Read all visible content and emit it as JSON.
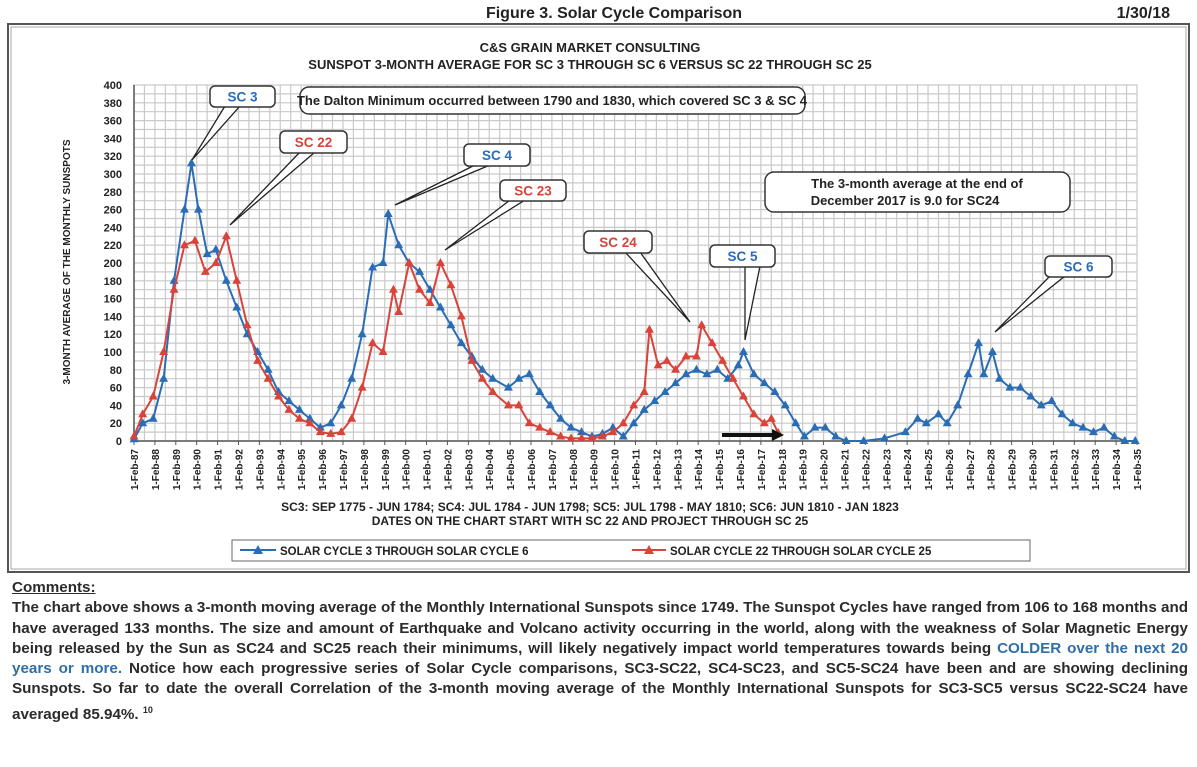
{
  "header": {
    "figure_title": "Figure 3.  Solar Cycle Comparison",
    "date": "1/30/18"
  },
  "chart_data": {
    "type": "line",
    "title": "C&S GRAIN MARKET CONSULTING",
    "subtitle": "SUNSPOT 3-MONTH AVERAGE FOR SC 3 THROUGH SC 6 VERSUS SC 22 THROUGH SC 25",
    "ylabel": "3-MONTH AVERAGE OF THE MONTHLY SUNSPOTS",
    "xlabel_lines": [
      "SC3: SEP 1775 - JUN 1784; SC4: JUL 1784 - JUN 1798; SC5: JUL 1798 - MAY 1810; SC6: JUN 1810 - JAN 1823",
      "DATES ON THE CHART START WITH SC 22 AND PROJECT THROUGH SC 25"
    ],
    "ylim": [
      0,
      400
    ],
    "y_ticks": [
      0,
      20,
      40,
      60,
      80,
      100,
      120,
      140,
      160,
      180,
      200,
      220,
      240,
      260,
      280,
      300,
      320,
      340,
      360,
      380,
      400
    ],
    "xlim": [
      "1987-02",
      "2035-02"
    ],
    "x_tick_labels": [
      "1-Feb-87",
      "1-Feb-88",
      "1-Feb-89",
      "1-Feb-90",
      "1-Feb-91",
      "1-Feb-92",
      "1-Feb-93",
      "1-Feb-94",
      "1-Feb-95",
      "1-Feb-96",
      "1-Feb-97",
      "1-Feb-98",
      "1-Feb-99",
      "1-Feb-00",
      "1-Feb-01",
      "1-Feb-02",
      "1-Feb-03",
      "1-Feb-04",
      "1-Feb-05",
      "1-Feb-06",
      "1-Feb-07",
      "1-Feb-08",
      "1-Feb-09",
      "1-Feb-10",
      "1-Feb-11",
      "1-Feb-12",
      "1-Feb-13",
      "1-Feb-14",
      "1-Feb-15",
      "1-Feb-16",
      "1-Feb-17",
      "1-Feb-18",
      "1-Feb-19",
      "1-Feb-20",
      "1-Feb-21",
      "1-Feb-22",
      "1-Feb-23",
      "1-Feb-24",
      "1-Feb-25",
      "1-Feb-26",
      "1-Feb-27",
      "1-Feb-28",
      "1-Feb-29",
      "1-Feb-30",
      "1-Feb-31",
      "1-Feb-32",
      "1-Feb-33",
      "1-Feb-34",
      "1-Feb-35"
    ],
    "grid": true,
    "legend_placement": "bottom",
    "series": [
      {
        "name": "SOLAR CYCLE 3 THROUGH SOLAR CYCLE 6",
        "color": "#2a6db5",
        "marker": "triangle",
        "points": [
          [
            "1987-02",
            2
          ],
          [
            "1987-07",
            20
          ],
          [
            "1988-01",
            25
          ],
          [
            "1988-07",
            70
          ],
          [
            "1989-01",
            180
          ],
          [
            "1989-07",
            260
          ],
          [
            "1989-11",
            312
          ],
          [
            "1990-03",
            260
          ],
          [
            "1990-08",
            210
          ],
          [
            "1991-01",
            215
          ],
          [
            "1991-07",
            180
          ],
          [
            "1992-01",
            150
          ],
          [
            "1992-07",
            120
          ],
          [
            "1993-01",
            100
          ],
          [
            "1993-07",
            80
          ],
          [
            "1994-01",
            55
          ],
          [
            "1994-07",
            45
          ],
          [
            "1995-01",
            35
          ],
          [
            "1995-07",
            25
          ],
          [
            "1996-01",
            15
          ],
          [
            "1996-07",
            20
          ],
          [
            "1997-01",
            40
          ],
          [
            "1997-07",
            70
          ],
          [
            "1998-01",
            120
          ],
          [
            "1998-07",
            195
          ],
          [
            "1999-01",
            200
          ],
          [
            "1999-04",
            255
          ],
          [
            "1999-10",
            220
          ],
          [
            "2000-04",
            200
          ],
          [
            "2000-10",
            190
          ],
          [
            "2001-04",
            170
          ],
          [
            "2001-10",
            150
          ],
          [
            "2002-04",
            130
          ],
          [
            "2002-10",
            110
          ],
          [
            "2003-04",
            95
          ],
          [
            "2003-10",
            80
          ],
          [
            "2004-04",
            70
          ],
          [
            "2005-01",
            60
          ],
          [
            "2005-07",
            70
          ],
          [
            "2006-01",
            75
          ],
          [
            "2006-07",
            55
          ],
          [
            "2007-01",
            40
          ],
          [
            "2007-07",
            25
          ],
          [
            "2008-01",
            15
          ],
          [
            "2008-07",
            10
          ],
          [
            "2009-01",
            5
          ],
          [
            "2009-07",
            8
          ],
          [
            "2010-01",
            15
          ],
          [
            "2010-07",
            5
          ],
          [
            "2011-01",
            20
          ],
          [
            "2011-07",
            35
          ],
          [
            "2012-01",
            45
          ],
          [
            "2012-07",
            55
          ],
          [
            "2013-01",
            65
          ],
          [
            "2013-07",
            75
          ],
          [
            "2014-01",
            80
          ],
          [
            "2014-07",
            75
          ],
          [
            "2015-01",
            80
          ],
          [
            "2015-07",
            70
          ],
          [
            "2016-01",
            85
          ],
          [
            "2016-04",
            100
          ],
          [
            "2016-10",
            75
          ],
          [
            "2017-04",
            65
          ],
          [
            "2017-10",
            55
          ],
          [
            "2018-04",
            40
          ],
          [
            "2018-10",
            20
          ],
          [
            "2019-03",
            5
          ],
          [
            "2019-09",
            15
          ],
          [
            "2020-03",
            15
          ],
          [
            "2020-09",
            5
          ],
          [
            "2021-03",
            0
          ],
          [
            "2022-01",
            0
          ],
          [
            "2023-01",
            3
          ],
          [
            "2024-01",
            10
          ],
          [
            "2024-08",
            25
          ],
          [
            "2025-01",
            20
          ],
          [
            "2025-08",
            30
          ],
          [
            "2026-01",
            20
          ],
          [
            "2026-07",
            40
          ],
          [
            "2027-01",
            75
          ],
          [
            "2027-07",
            110
          ],
          [
            "2027-10",
            75
          ],
          [
            "2028-03",
            100
          ],
          [
            "2028-07",
            70
          ],
          [
            "2029-01",
            60
          ],
          [
            "2029-07",
            60
          ],
          [
            "2030-01",
            50
          ],
          [
            "2030-07",
            40
          ],
          [
            "2031-01",
            45
          ],
          [
            "2031-07",
            30
          ],
          [
            "2032-01",
            20
          ],
          [
            "2032-07",
            15
          ],
          [
            "2033-01",
            10
          ],
          [
            "2033-07",
            15
          ],
          [
            "2034-01",
            5
          ],
          [
            "2034-07",
            0
          ],
          [
            "2035-01",
            0
          ]
        ]
      },
      {
        "name": "SOLAR CYCLE 22 THROUGH SOLAR CYCLE 25",
        "color": "#d9433a",
        "marker": "triangle",
        "points": [
          [
            "1987-02",
            5
          ],
          [
            "1987-07",
            30
          ],
          [
            "1988-01",
            50
          ],
          [
            "1988-07",
            100
          ],
          [
            "1989-01",
            170
          ],
          [
            "1989-07",
            220
          ],
          [
            "1990-01",
            225
          ],
          [
            "1990-07",
            190
          ],
          [
            "1991-01",
            200
          ],
          [
            "1991-07",
            230
          ],
          [
            "1992-01",
            180
          ],
          [
            "1992-07",
            130
          ],
          [
            "1993-01",
            90
          ],
          [
            "1993-07",
            70
          ],
          [
            "1994-01",
            50
          ],
          [
            "1994-07",
            35
          ],
          [
            "1995-01",
            25
          ],
          [
            "1995-07",
            20
          ],
          [
            "1996-01",
            10
          ],
          [
            "1996-07",
            8
          ],
          [
            "1997-01",
            10
          ],
          [
            "1997-07",
            25
          ],
          [
            "1998-01",
            60
          ],
          [
            "1998-07",
            110
          ],
          [
            "1999-01",
            100
          ],
          [
            "1999-07",
            170
          ],
          [
            "1999-10",
            145
          ],
          [
            "2000-04",
            200
          ],
          [
            "2000-10",
            170
          ],
          [
            "2001-04",
            155
          ],
          [
            "2001-10",
            200
          ],
          [
            "2002-04",
            175
          ],
          [
            "2002-10",
            140
          ],
          [
            "2003-04",
            90
          ],
          [
            "2003-10",
            70
          ],
          [
            "2004-04",
            55
          ],
          [
            "2005-01",
            40
          ],
          [
            "2005-07",
            40
          ],
          [
            "2006-01",
            20
          ],
          [
            "2006-07",
            15
          ],
          [
            "2007-01",
            10
          ],
          [
            "2007-07",
            5
          ],
          [
            "2008-01",
            3
          ],
          [
            "2008-07",
            3
          ],
          [
            "2009-01",
            3
          ],
          [
            "2009-07",
            5
          ],
          [
            "2010-01",
            10
          ],
          [
            "2010-07",
            20
          ],
          [
            "2011-01",
            40
          ],
          [
            "2011-07",
            55
          ],
          [
            "2011-10",
            125
          ],
          [
            "2012-03",
            85
          ],
          [
            "2012-08",
            90
          ],
          [
            "2013-01",
            80
          ],
          [
            "2013-07",
            95
          ],
          [
            "2014-01",
            95
          ],
          [
            "2014-04",
            130
          ],
          [
            "2014-10",
            110
          ],
          [
            "2015-04",
            90
          ],
          [
            "2015-10",
            70
          ],
          [
            "2016-04",
            50
          ],
          [
            "2016-10",
            30
          ],
          [
            "2017-04",
            20
          ],
          [
            "2017-08",
            25
          ],
          [
            "2017-12",
            9
          ]
        ]
      }
    ],
    "annotations": {
      "dalton": "The Dalton Minimum occurred between 1790 and 1830, which covered SC 3 & SC 4",
      "dec2017_line1": "The 3-month average at the end of",
      "dec2017_line2": "December 2017 is 9.0 for SC24",
      "callouts": [
        {
          "label": "SC 3",
          "color": "#2a6db5"
        },
        {
          "label": "SC 22",
          "color": "#d9433a"
        },
        {
          "label": "SC 4",
          "color": "#2a6db5"
        },
        {
          "label": "SC 23",
          "color": "#d9433a"
        },
        {
          "label": "SC 24",
          "color": "#d9433a"
        },
        {
          "label": "SC 5",
          "color": "#2a6db5"
        },
        {
          "label": "SC 6",
          "color": "#2a6db5"
        }
      ]
    }
  },
  "comments": {
    "heading": "Comments:",
    "text_before": "The chart above shows a 3-month moving average of the Monthly International Sunspots since 1749. The Sunspot Cycles have ranged from 106 to 168 months and have averaged 133 months. The size and amount of Earthquake and Volcano activity occurring in the world, along with the weakness of Solar Magnetic Energy being released by the Sun as SC24 and SC25 reach their minimums, will likely negatively impact world temperatures towards being ",
    "highlight": "COLDER over the next 20 years or more.",
    "text_after": " Notice how each progressive series of Solar Cycle comparisons, SC3-SC22, SC4-SC23, and SC5-SC24 have been and are showing declining Sunspots. So far to date the overall Correlation of the 3-month moving average of the Monthly International Sunspots for SC3-SC5 versus SC22-SC24 have averaged 85.94%.",
    "page_number": "10"
  }
}
